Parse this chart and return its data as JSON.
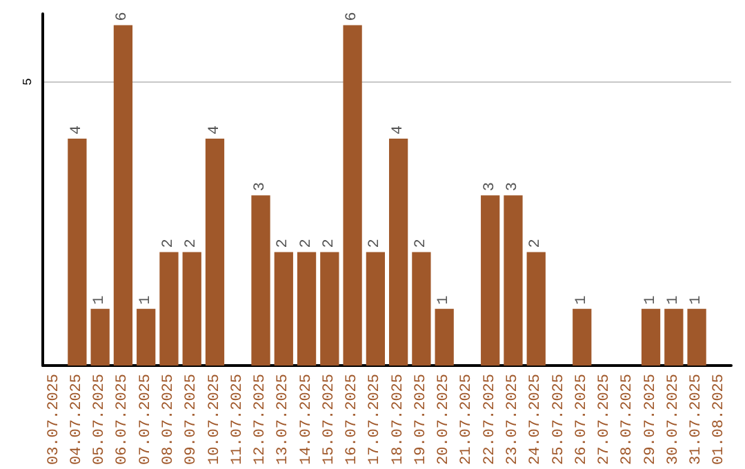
{
  "chart_data": {
    "type": "bar",
    "categories": [
      "03.07.2025",
      "04.07.2025",
      "05.07.2025",
      "06.07.2025",
      "07.07.2025",
      "08.07.2025",
      "09.07.2025",
      "10.07.2025",
      "11.07.2025",
      "12.07.2025",
      "13.07.2025",
      "14.07.2025",
      "15.07.2025",
      "16.07.2025",
      "17.07.2025",
      "18.07.2025",
      "19.07.2025",
      "20.07.2025",
      "21.07.2025",
      "22.07.2025",
      "23.07.2025",
      "24.07.2025",
      "25.07.2025",
      "26.07.2025",
      "27.07.2025",
      "28.07.2025",
      "29.07.2025",
      "30.07.2025",
      "31.07.2025",
      "01.08.2025"
    ],
    "values": [
      0,
      4,
      1,
      6,
      1,
      2,
      2,
      4,
      0,
      3,
      2,
      2,
      2,
      6,
      2,
      4,
      2,
      1,
      0,
      3,
      3,
      2,
      0,
      1,
      0,
      0,
      1,
      1,
      1,
      0
    ],
    "value_labels": [
      null,
      "4",
      "1",
      "6",
      "1",
      "2",
      "2",
      "4",
      null,
      "3",
      "2",
      "2",
      "2",
      "6",
      "2",
      "4",
      "2",
      "1",
      null,
      "3",
      "3",
      "2",
      null,
      "1",
      null,
      null,
      "1",
      "1",
      "1",
      null
    ],
    "color": "#a0582a",
    "ylim": [
      0,
      6.2
    ],
    "yticks": [
      5
    ],
    "grid": "y"
  }
}
